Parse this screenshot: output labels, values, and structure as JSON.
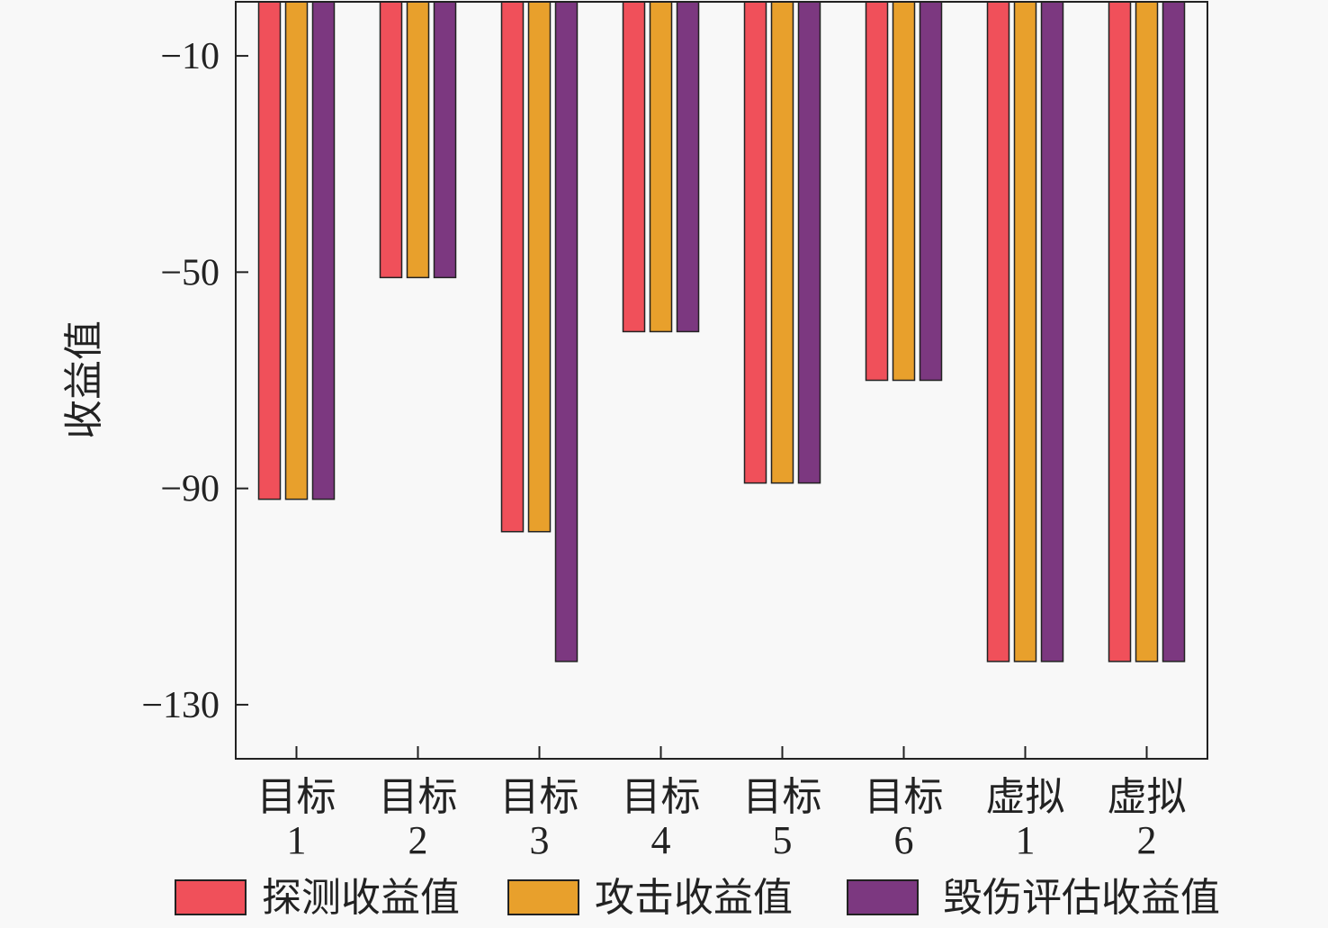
{
  "chart_data": {
    "type": "bar",
    "title": "",
    "xlabel": "",
    "ylabel": "收益值",
    "ylim": [
      -140,
      0
    ],
    "yticks": [
      -10,
      -50,
      -90,
      -130
    ],
    "ytick_labels": [
      "−10",
      "−50",
      "−90",
      "−130"
    ],
    "categories": [
      [
        "目标",
        "1"
      ],
      [
        "目标",
        "2"
      ],
      [
        "目标",
        "3"
      ],
      [
        "目标",
        "4"
      ],
      [
        "目标",
        "5"
      ],
      [
        "目标",
        "6"
      ],
      [
        "虚拟",
        "1"
      ],
      [
        "虚拟",
        "2"
      ]
    ],
    "series": [
      {
        "name": "探测收益值",
        "color": "#f0505a",
        "values": [
          -92,
          -51,
          -98,
          -61,
          -89,
          -70,
          -122,
          -122
        ]
      },
      {
        "name": "攻击收益值",
        "color": "#e8a02c",
        "values": [
          -92,
          -51,
          -98,
          -61,
          -89,
          -70,
          -122,
          -122
        ]
      },
      {
        "name": "毁伤评估收益值",
        "color": "#7c3880",
        "values": [
          -92,
          -51,
          -122,
          -61,
          -89,
          -70,
          -122,
          -122
        ]
      }
    ],
    "legend_position": "bottom",
    "grid": false
  }
}
